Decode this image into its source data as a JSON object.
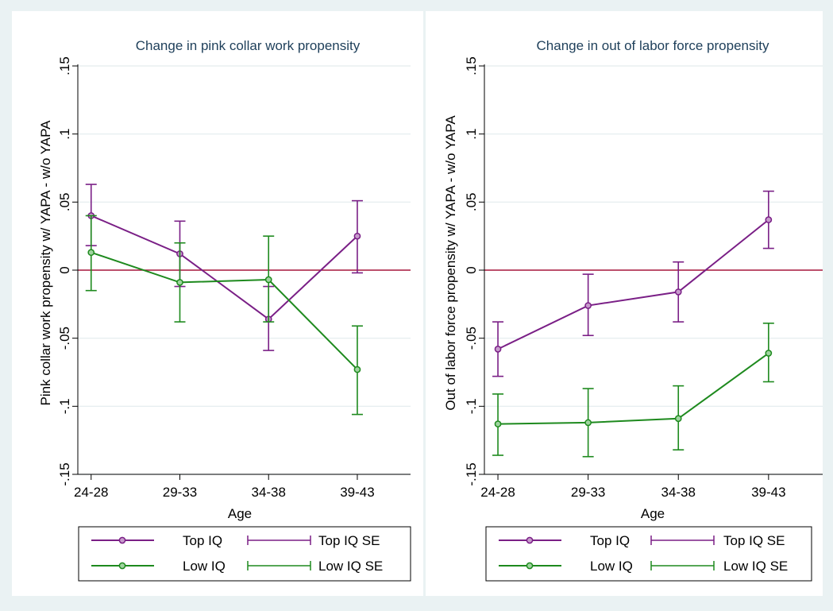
{
  "chart_data": [
    {
      "type": "line",
      "title": "Change in pink collar work propensity",
      "xlabel": "Age",
      "ylabel": "Pink collar work propensity w/ YAPA - w/o YAPA",
      "categories": [
        "24-28",
        "29-33",
        "34-38",
        "39-43"
      ],
      "ylim": [
        -0.15,
        0.15
      ],
      "yticks": [
        -0.15,
        -0.1,
        -0.05,
        0,
        0.05,
        0.1,
        0.15
      ],
      "ytick_labels": [
        "-.15",
        "-.1",
        "-.05",
        "0",
        ".05",
        ".1",
        ".15"
      ],
      "grid": true,
      "reference_line": 0,
      "legend_position": "bottom",
      "series": [
        {
          "name": "Top IQ",
          "color": "#7a1f86",
          "values": [
            0.04,
            0.012,
            -0.036,
            0.025
          ],
          "se_low": [
            0.018,
            -0.012,
            -0.059,
            -0.002
          ],
          "se_high": [
            0.063,
            0.036,
            -0.012,
            0.051
          ]
        },
        {
          "name": "Low IQ",
          "color": "#1e8a1e",
          "values": [
            0.013,
            -0.009,
            -0.007,
            -0.073
          ],
          "se_low": [
            -0.015,
            -0.038,
            -0.038,
            -0.106
          ],
          "se_high": [
            0.04,
            0.02,
            0.025,
            -0.041
          ]
        }
      ],
      "legend": [
        "Top IQ",
        "Top IQ SE",
        "Low IQ",
        "Low IQ SE"
      ]
    },
    {
      "type": "line",
      "title": "Change in out of labor force propensity",
      "xlabel": "Age",
      "ylabel": "Out of labor force propensity w/ YAPA - w/o YAPA",
      "categories": [
        "24-28",
        "29-33",
        "34-38",
        "39-43"
      ],
      "ylim": [
        -0.15,
        0.15
      ],
      "yticks": [
        -0.15,
        -0.1,
        -0.05,
        0,
        0.05,
        0.1,
        0.15
      ],
      "ytick_labels": [
        "-.15",
        "-.1",
        "-.05",
        "0",
        ".05",
        ".1",
        ".15"
      ],
      "grid": true,
      "reference_line": 0,
      "legend_position": "bottom",
      "series": [
        {
          "name": "Top IQ",
          "color": "#7a1f86",
          "values": [
            -0.058,
            -0.026,
            -0.016,
            0.037
          ],
          "se_low": [
            -0.078,
            -0.048,
            -0.038,
            0.016
          ],
          "se_high": [
            -0.038,
            -0.003,
            0.006,
            0.058
          ]
        },
        {
          "name": "Low IQ",
          "color": "#1e8a1e",
          "values": [
            -0.113,
            -0.112,
            -0.109,
            -0.061
          ],
          "se_low": [
            -0.136,
            -0.137,
            -0.132,
            -0.082
          ],
          "se_high": [
            -0.091,
            -0.087,
            -0.085,
            -0.039
          ]
        }
      ],
      "legend": [
        "Top IQ",
        "Top IQ SE",
        "Low IQ",
        "Low IQ SE"
      ]
    }
  ],
  "colors": {
    "reference_line": "#a8193c",
    "grid": "#e3ecee",
    "background": "#eaf2f3"
  }
}
